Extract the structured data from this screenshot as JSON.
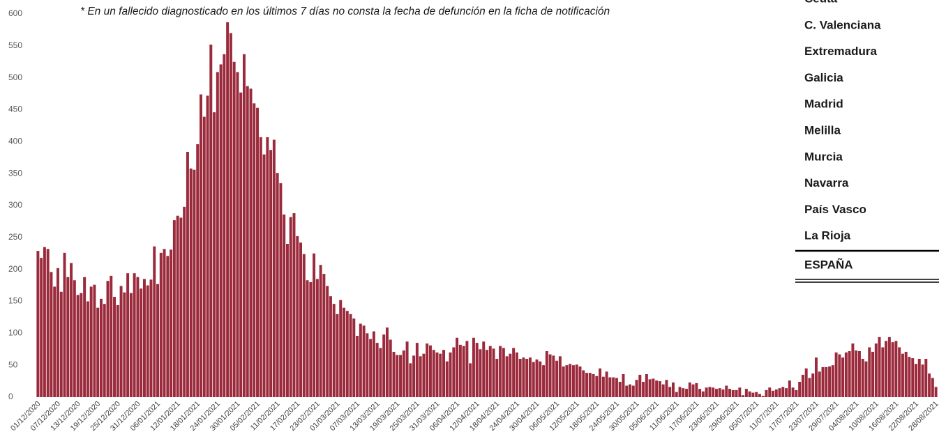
{
  "chart_data": {
    "type": "bar",
    "annotation": "* En un fallecido diagnosticado en los últimos 7 días no consta la fecha de defunción en la ficha de notificación",
    "color": "#9b2b3c",
    "ylim": [
      0,
      600
    ],
    "yticks": [
      0,
      50,
      100,
      150,
      200,
      250,
      300,
      350,
      400,
      450,
      500,
      550,
      600
    ],
    "categories": [
      "01/12/2020",
      null,
      null,
      null,
      null,
      null,
      "07/12/2020",
      null,
      null,
      null,
      null,
      null,
      "13/12/2020",
      null,
      null,
      null,
      null,
      null,
      "19/12/2020",
      null,
      null,
      null,
      null,
      null,
      "25/12/2020",
      null,
      null,
      null,
      null,
      null,
      "31/12/2020",
      null,
      null,
      null,
      null,
      null,
      "06/01/2021",
      null,
      null,
      null,
      null,
      null,
      "12/01/2021",
      null,
      null,
      null,
      null,
      null,
      "18/01/2021",
      null,
      null,
      null,
      null,
      null,
      "24/01/2021",
      null,
      null,
      null,
      null,
      null,
      "30/01/2021",
      null,
      null,
      null,
      null,
      null,
      "05/02/2021",
      null,
      null,
      null,
      null,
      null,
      "11/02/2021",
      null,
      null,
      null,
      null,
      null,
      "17/02/2021",
      null,
      null,
      null,
      null,
      null,
      "23/02/2021",
      null,
      null,
      null,
      null,
      null,
      "01/03/2021",
      null,
      null,
      null,
      null,
      null,
      "07/03/2021",
      null,
      null,
      null,
      null,
      null,
      "13/03/2021",
      null,
      null,
      null,
      null,
      null,
      "19/03/2021",
      null,
      null,
      null,
      null,
      null,
      "25/03/2021",
      null,
      null,
      null,
      null,
      null,
      "31/03/2021",
      null,
      null,
      null,
      null,
      null,
      "06/04/2021",
      null,
      null,
      null,
      null,
      null,
      "12/04/2021",
      null,
      null,
      null,
      null,
      null,
      "18/04/2021",
      null,
      null,
      null,
      null,
      null,
      "24/04/2021",
      null,
      null,
      null,
      null,
      null,
      "30/04/2021",
      null,
      null,
      null,
      null,
      null,
      "06/05/2021",
      null,
      null,
      null,
      null,
      null,
      "12/05/2021",
      null,
      null,
      null,
      null,
      null,
      "18/05/2021",
      null,
      null,
      null,
      null,
      null,
      "24/05/2021",
      null,
      null,
      null,
      null,
      null,
      "30/05/2021",
      null,
      null,
      null,
      null,
      null,
      "05/06/2021",
      null,
      null,
      null,
      null,
      null,
      "11/06/2021",
      null,
      null,
      null,
      null,
      null,
      "17/06/2021",
      null,
      null,
      null,
      null,
      null,
      "23/06/2021",
      null,
      null,
      null,
      null,
      null,
      "29/06/2021",
      null,
      null,
      null,
      null,
      null,
      "05/07/2021",
      null,
      null,
      null,
      null,
      null,
      "11/07/2021",
      null,
      null,
      null,
      null,
      null,
      "17/07/2021",
      null,
      null,
      null,
      null,
      null,
      "23/07/2021",
      null,
      null,
      null,
      null,
      null,
      "29/07/2021",
      null,
      null,
      null,
      null,
      null,
      "04/08/2021",
      null,
      null,
      null,
      null,
      null,
      "10/08/2021",
      null,
      null,
      null,
      null,
      null,
      "16/08/2021",
      null,
      null,
      null,
      null,
      null,
      "22/08/2021",
      null,
      null,
      null,
      null,
      null,
      "28/08/2021"
    ],
    "values": [
      229,
      218,
      235,
      232,
      196,
      173,
      202,
      165,
      226,
      188,
      210,
      183,
      160,
      163,
      188,
      150,
      173,
      176,
      140,
      154,
      146,
      182,
      190,
      157,
      144,
      174,
      164,
      194,
      163,
      194,
      188,
      170,
      185,
      175,
      184,
      236,
      177,
      226,
      232,
      221,
      231,
      277,
      284,
      281,
      298,
      384,
      358,
      356,
      396,
      474,
      439,
      472,
      552,
      446,
      509,
      521,
      537,
      587,
      570,
      525,
      509,
      477,
      537,
      487,
      483,
      460,
      453,
      407,
      380,
      407,
      387,
      403,
      351,
      335,
      286,
      240,
      282,
      288,
      252,
      242,
      224,
      183,
      180,
      225,
      185,
      207,
      193,
      174,
      158,
      146,
      130,
      152,
      140,
      135,
      130,
      123,
      96,
      115,
      112,
      100,
      91,
      103,
      85,
      77,
      98,
      109,
      90,
      71,
      66,
      66,
      73,
      87,
      53,
      65,
      85,
      64,
      68,
      84,
      81,
      74,
      70,
      68,
      74,
      56,
      70,
      78,
      93,
      82,
      80,
      88,
      53,
      93,
      85,
      75,
      87,
      74,
      80,
      76,
      60,
      80,
      77,
      64,
      68,
      77,
      70,
      60,
      62,
      60,
      62,
      55,
      59,
      56,
      50,
      72,
      67,
      65,
      57,
      64,
      48,
      50,
      52,
      50,
      51,
      48,
      42,
      38,
      38,
      36,
      33,
      45,
      32,
      40,
      31,
      31,
      30,
      24,
      36,
      18,
      20,
      18,
      27,
      35,
      24,
      36,
      28,
      29,
      26,
      25,
      20,
      27,
      16,
      23,
      8,
      16,
      14,
      13,
      23,
      20,
      22,
      13,
      9,
      15,
      16,
      15,
      13,
      14,
      12,
      18,
      13,
      11,
      11,
      15,
      3,
      13,
      9,
      7,
      8,
      5,
      2,
      11,
      15,
      10,
      12,
      14,
      16,
      14,
      26,
      15,
      11,
      24,
      35,
      45,
      30,
      37,
      62,
      40,
      47,
      47,
      48,
      50,
      70,
      67,
      62,
      70,
      72,
      84,
      73,
      72,
      60,
      56,
      78,
      71,
      84,
      94,
      78,
      88,
      94,
      86,
      88,
      78,
      68,
      71,
      63,
      61,
      52,
      60,
      51,
      60,
      37,
      30,
      16
    ]
  },
  "table": {
    "rows": [
      "Ceuta",
      "C. Valenciana",
      "Extremadura",
      "Galicia",
      "Madrid",
      "Melilla",
      "Murcia",
      "Navarra",
      "País Vasco",
      "La Rioja"
    ],
    "total": "ESPAÑA"
  }
}
